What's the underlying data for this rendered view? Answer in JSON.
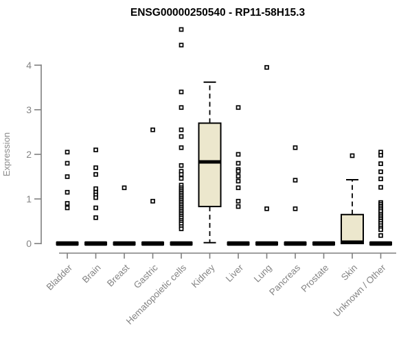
{
  "page": {
    "background": "#ffffff"
  },
  "chart_data": {
    "type": "boxplot",
    "title": "ENSG00000250540 - RP11-58H15.3",
    "ylabel": "Expression",
    "xlabel": "",
    "ylim": [
      0,
      4.85
    ],
    "yticks": [
      0,
      1,
      2,
      3,
      4
    ],
    "x_label_rotation": -45,
    "grid": false,
    "legend": "none",
    "colors": {
      "box_fill": "#ece7cd",
      "box_border": "#000000",
      "median": "#000000",
      "whisker": "#000000",
      "outlier_stroke": "#000000",
      "outlier_fill": "#ffffff",
      "axis": "#7f7f7f",
      "tick_label": "#848484",
      "title": "#000000"
    },
    "categories": [
      "Bladder",
      "Brain",
      "Breast",
      "Gastric",
      "Hematopoietic cells",
      "Kidney",
      "Liver",
      "Lung",
      "Pancreas",
      "Prostate",
      "Skin",
      "Unknown / Other"
    ],
    "series": [
      {
        "name": "Bladder",
        "q1": 0,
        "median": 0,
        "q3": 0,
        "whisker_low": 0,
        "whisker_high": 0,
        "outliers": [
          2.05,
          1.8,
          1.5,
          1.15,
          0.9,
          0.8
        ]
      },
      {
        "name": "Brain",
        "q1": 0,
        "median": 0,
        "q3": 0,
        "whisker_low": 0,
        "whisker_high": 0,
        "outliers": [
          2.1,
          1.7,
          1.55,
          1.23,
          1.15,
          1.09,
          1.03,
          0.8,
          0.58
        ]
      },
      {
        "name": "Breast",
        "q1": 0,
        "median": 0,
        "q3": 0,
        "whisker_low": 0,
        "whisker_high": 0,
        "outliers": [
          1.25
        ]
      },
      {
        "name": "Gastric",
        "q1": 0,
        "median": 0,
        "q3": 0,
        "whisker_low": 0,
        "whisker_high": 0,
        "outliers": [
          2.55,
          0.95
        ]
      },
      {
        "name": "Hematopoietic cells",
        "q1": 0,
        "median": 0,
        "q3": 0,
        "whisker_low": 0,
        "whisker_high": 0,
        "outliers": [
          4.8,
          4.45,
          3.4,
          3.05,
          2.55,
          2.4,
          2.15,
          1.75,
          1.62,
          1.55,
          1.46,
          1.31,
          1.25,
          1.21,
          1.17,
          1.13,
          1.09,
          1.05,
          1.01,
          0.97,
          0.93,
          0.89,
          0.85,
          0.81,
          0.77,
          0.73,
          0.69,
          0.65,
          0.61,
          0.57,
          0.52,
          0.48,
          0.44,
          0.38,
          0.33
        ]
      },
      {
        "name": "Kidney",
        "q1": 0.83,
        "median": 1.83,
        "q3": 2.7,
        "whisker_low": 0.02,
        "whisker_high": 3.62,
        "outliers": []
      },
      {
        "name": "Liver",
        "q1": 0,
        "median": 0,
        "q3": 0,
        "whisker_low": 0,
        "whisker_high": 0,
        "outliers": [
          3.05,
          2.0,
          1.8,
          1.66,
          1.62,
          1.51,
          1.4,
          1.25,
          0.95,
          0.83
        ]
      },
      {
        "name": "Lung",
        "q1": 0,
        "median": 0,
        "q3": 0,
        "whisker_low": 0,
        "whisker_high": 0,
        "outliers": [
          3.95,
          0.78
        ]
      },
      {
        "name": "Pancreas",
        "q1": 0,
        "median": 0,
        "q3": 0,
        "whisker_low": 0,
        "whisker_high": 0,
        "outliers": [
          2.15,
          1.42,
          0.78
        ]
      },
      {
        "name": "Prostate",
        "q1": 0,
        "median": 0,
        "q3": 0,
        "whisker_low": 0,
        "whisker_high": 0,
        "outliers": []
      },
      {
        "name": "Skin",
        "q1": 0,
        "median": 0.03,
        "q3": 0.65,
        "whisker_low": 0,
        "whisker_high": 1.43,
        "outliers": [
          1.97
        ]
      },
      {
        "name": "Unknown / Other",
        "q1": 0,
        "median": 0,
        "q3": 0,
        "whisker_low": 0,
        "whisker_high": 0,
        "outliers": [
          2.05,
          1.98,
          1.79,
          1.61,
          1.45,
          1.26,
          0.92,
          0.88,
          0.84,
          0.8,
          0.76,
          0.72,
          0.66,
          0.62,
          0.58,
          0.54,
          0.5,
          0.45,
          0.4,
          0.35,
          0.31,
          0.18
        ]
      }
    ]
  }
}
